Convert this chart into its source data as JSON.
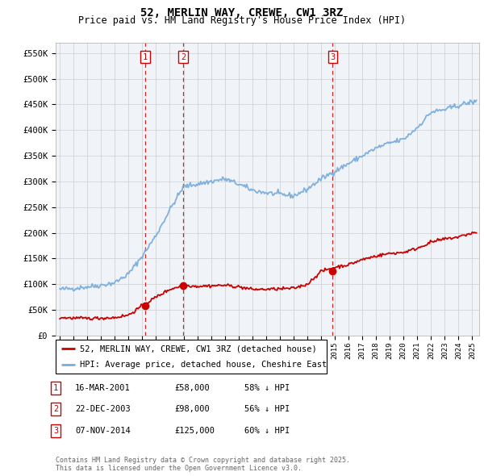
{
  "title": "52, MERLIN WAY, CREWE, CW1 3RZ",
  "subtitle": "Price paid vs. HM Land Registry's House Price Index (HPI)",
  "hpi_color": "#7aaddc",
  "price_color": "#cc0000",
  "vline_color": "#cc0000",
  "background_color": "#ffffff",
  "grid_color": "#cccccc",
  "plot_bg_color": "#f0f4f8",
  "ylim": [
    0,
    570000
  ],
  "xlim_start": 1994.7,
  "xlim_end": 2025.5,
  "yticks": [
    0,
    50000,
    100000,
    150000,
    200000,
    250000,
    300000,
    350000,
    400000,
    450000,
    500000,
    550000
  ],
  "ytick_labels": [
    "£0",
    "£50K",
    "£100K",
    "£150K",
    "£200K",
    "£250K",
    "£300K",
    "£350K",
    "£400K",
    "£450K",
    "£500K",
    "£550K"
  ],
  "transactions": [
    {
      "num": 1,
      "date": "16-MAR-2001",
      "price": 58000,
      "year": 2001.21,
      "label": "16-MAR-2001",
      "amount": "£58,000",
      "pct": "58% ↓ HPI"
    },
    {
      "num": 2,
      "date": "22-DEC-2003",
      "price": 98000,
      "year": 2003.97,
      "label": "22-DEC-2003",
      "amount": "£98,000",
      "pct": "56% ↓ HPI"
    },
    {
      "num": 3,
      "date": "07-NOV-2014",
      "price": 125000,
      "year": 2014.85,
      "label": "07-NOV-2014",
      "amount": "£125,000",
      "pct": "60% ↓ HPI"
    }
  ],
  "legend_property": "52, MERLIN WAY, CREWE, CW1 3RZ (detached house)",
  "legend_hpi": "HPI: Average price, detached house, Cheshire East",
  "footnote": "Contains HM Land Registry data © Crown copyright and database right 2025.\nThis data is licensed under the Open Government Licence v3.0."
}
